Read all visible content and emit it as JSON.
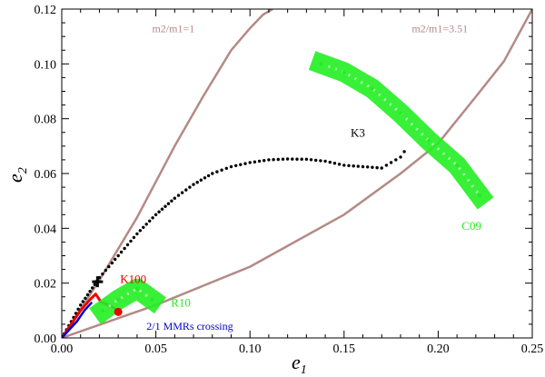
{
  "chart_data": {
    "type": "scatter",
    "xlabel": "e",
    "xlabel_sub": "1",
    "ylabel": "e",
    "ylabel_sub": "2",
    "xlim": [
      0.0,
      0.25
    ],
    "ylim": [
      0.0,
      0.12
    ],
    "xticks": [
      0.0,
      0.05,
      0.1,
      0.15,
      0.2,
      0.25
    ],
    "xtick_labels": [
      "0.00",
      "0.05",
      "0.10",
      "0.15",
      "0.20",
      "0.25"
    ],
    "yticks": [
      0.0,
      0.02,
      0.04,
      0.06,
      0.08,
      0.1,
      0.12
    ],
    "ytick_labels": [
      "0.00",
      "0.02",
      "0.04",
      "0.06",
      "0.08",
      "0.10",
      "0.12"
    ],
    "colors": {
      "curve": "#b38a86",
      "k3": "#000000",
      "k100": "#ee0000",
      "green": "#22ee22",
      "blue": "#0000cc",
      "green_label": "#22ee22",
      "curve_label": "#b38a86"
    },
    "series": [
      {
        "name": "m2/m1=1 curve",
        "kind": "line",
        "color_key": "curve",
        "x": [
          0.0,
          0.02,
          0.04,
          0.06,
          0.075,
          0.09,
          0.1,
          0.107,
          0.112
        ],
        "y": [
          0.0,
          0.021,
          0.044,
          0.07,
          0.088,
          0.105,
          0.113,
          0.118,
          0.12
        ]
      },
      {
        "name": "m2/m1=3.51 curve",
        "kind": "line",
        "color_key": "curve",
        "x": [
          0.0,
          0.05,
          0.1,
          0.15,
          0.18,
          0.2,
          0.22,
          0.235,
          0.25
        ],
        "y": [
          0.0,
          0.012,
          0.026,
          0.045,
          0.06,
          0.071,
          0.088,
          0.101,
          0.12
        ]
      },
      {
        "name": "K3",
        "kind": "dots",
        "color_key": "k3",
        "x": [
          0.0,
          0.005,
          0.01,
          0.015,
          0.02,
          0.03,
          0.04,
          0.05,
          0.06,
          0.07,
          0.08,
          0.09,
          0.1,
          0.11,
          0.12,
          0.13,
          0.14,
          0.15,
          0.16,
          0.17,
          0.175,
          0.18,
          0.182
        ],
        "y": [
          0.0,
          0.006,
          0.012,
          0.017,
          0.022,
          0.03,
          0.038,
          0.045,
          0.051,
          0.056,
          0.06,
          0.0625,
          0.064,
          0.065,
          0.0653,
          0.0652,
          0.0645,
          0.063,
          0.0625,
          0.062,
          0.064,
          0.066,
          0.068
        ]
      },
      {
        "name": "K100",
        "kind": "line",
        "color_key": "k100",
        "x": [
          0.0,
          0.005,
          0.01,
          0.015,
          0.018,
          0.021,
          0.025,
          0.03
        ],
        "y": [
          0.0,
          0.005,
          0.01,
          0.014,
          0.016,
          0.013,
          0.012,
          0.01
        ]
      },
      {
        "name": "2/1 MMRs crossing",
        "kind": "line",
        "color_key": "blue",
        "x": [
          0.0,
          0.004,
          0.008,
          0.012,
          0.016
        ],
        "y": [
          0.0,
          0.003,
          0.006,
          0.01,
          0.013
        ]
      },
      {
        "name": "R10",
        "kind": "band",
        "color_key": "green",
        "x": [
          0.022,
          0.03,
          0.04,
          0.048
        ],
        "y": [
          0.01,
          0.014,
          0.018,
          0.014
        ]
      },
      {
        "name": "C09",
        "kind": "band",
        "color_key": "green",
        "x": [
          0.138,
          0.15,
          0.165,
          0.18,
          0.195,
          0.21,
          0.222
        ],
        "y": [
          0.1,
          0.097,
          0.091,
          0.082,
          0.072,
          0.063,
          0.052
        ]
      }
    ],
    "markers": [
      {
        "name": "K3 start",
        "shape": "plus",
        "color_key": "k3",
        "x": 0.019,
        "y": 0.0205
      },
      {
        "name": "K100 end",
        "shape": "dot",
        "color_key": "k100",
        "x": 0.03,
        "y": 0.0095
      }
    ],
    "annotations": [
      {
        "name": "m2/m1=1",
        "x": 0.048,
        "y": 0.1115,
        "color_key": "curve_label",
        "size": 12
      },
      {
        "name": "m2/m1=3.51",
        "x": 0.186,
        "y": 0.1115,
        "color_key": "curve_label",
        "size": 12
      },
      {
        "name": "K3",
        "x": 0.1535,
        "y": 0.0735,
        "color_key": "k3",
        "size": 13
      },
      {
        "name": "K100",
        "x": 0.031,
        "y": 0.02,
        "color_key": "k100",
        "size": 13
      },
      {
        "name": "R10",
        "x": 0.058,
        "y": 0.0115,
        "color_key": "green_label",
        "size": 13
      },
      {
        "name": "2/1 MMRs crossing",
        "x": 0.045,
        "y": 0.003,
        "color_key": "blue",
        "size": 12
      },
      {
        "name": "C09",
        "x": 0.2125,
        "y": 0.0395,
        "color_key": "green_label",
        "size": 13
      }
    ]
  }
}
